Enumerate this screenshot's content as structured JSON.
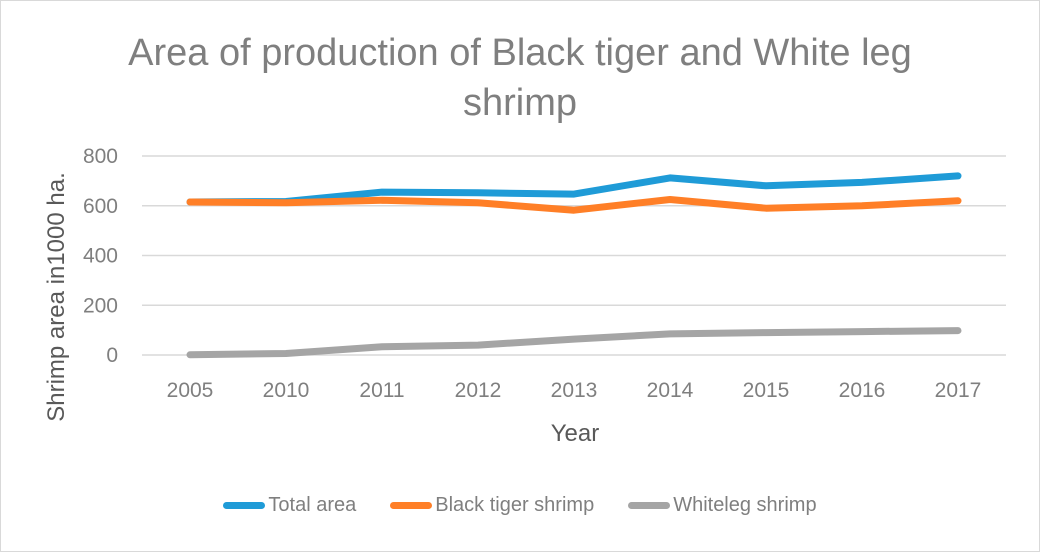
{
  "chart_data": {
    "type": "line",
    "title_lines": [
      "Area of production of Black tiger and White leg",
      "shrimp"
    ],
    "xlabel": "Year",
    "ylabel": "Shrimp area in1000 ha.",
    "categories": [
      "2005",
      "2010",
      "2011",
      "2012",
      "2013",
      "2014",
      "2015",
      "2016",
      "2017"
    ],
    "yticks": [
      "0",
      "200",
      "400",
      "600",
      "800"
    ],
    "ylim": [
      0,
      800
    ],
    "grid": true,
    "legend_position": "bottom",
    "series": [
      {
        "name": "Total area",
        "color": "#1f9bd7",
        "values": [
          615,
          617,
          655,
          652,
          647,
          712,
          680,
          694,
          720
        ]
      },
      {
        "name": "Black tiger shrimp",
        "color": "#ff7f27",
        "values": [
          615,
          612,
          622,
          612,
          582,
          625,
          590,
          600,
          620
        ]
      },
      {
        "name": "Whiteleg shrimp",
        "color": "#a5a5a5",
        "values": [
          1,
          6,
          33,
          40,
          64,
          85,
          90,
          94,
          98
        ]
      }
    ]
  }
}
